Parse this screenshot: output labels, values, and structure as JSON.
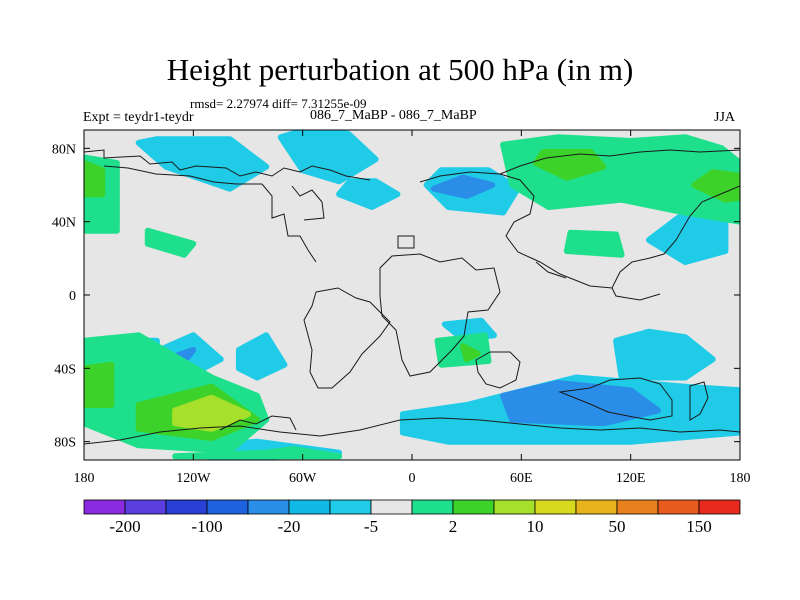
{
  "header": {
    "title": "Height perturbation at 500 hPa (in m)",
    "rmsd_line": "rmsd= 2.27974 diff= 7.31255e-09",
    "experiment": "Expt = teydr1-teydr",
    "difference_label": "086_7_MaBP - 086_7_MaBP",
    "season": "JJA"
  },
  "colors": {
    "background_field": "#e6e6e6",
    "coastline": "#1a1a1a"
  },
  "chart_data": {
    "type": "heatmap",
    "title": "Height perturbation at 500 hPa (in m)",
    "x_axis": {
      "range": [
        -180,
        180
      ],
      "ticks": [
        -180,
        -120,
        -60,
        0,
        60,
        120,
        180
      ],
      "tick_labels": [
        "180",
        "120W",
        "60W",
        "0",
        "60E",
        "120E",
        "180"
      ]
    },
    "y_axis": {
      "range": [
        -90,
        90
      ],
      "ticks": [
        80,
        40,
        0,
        -40,
        -80
      ],
      "tick_labels": [
        "80N",
        "40N",
        "0",
        "40S",
        "80S"
      ]
    },
    "colorbar": {
      "labels": [
        "-200",
        "-100",
        "-20",
        "-5",
        "2",
        "10",
        "50",
        "150"
      ],
      "colors": [
        "#8a2be2",
        "#5a3ee0",
        "#2a3fd6",
        "#1e62e0",
        "#2a8ee8",
        "#11b9e6",
        "#1fcbe6",
        "#e6e6e6",
        "#1ee08c",
        "#3cd22a",
        "#a6e02a",
        "#d6d91e",
        "#e8b41e",
        "#e8801e",
        "#e85a1e",
        "#e82a1e"
      ]
    },
    "features": [
      {
        "level": "-5",
        "color": "#1fcbe6",
        "lon": [
          -150,
          -135,
          -100,
          -80,
          -100,
          -140
        ],
        "lat": [
          83,
          70,
          58,
          70,
          85,
          85
        ]
      },
      {
        "level": "-5",
        "color": "#1fcbe6",
        "lon": [
          -72,
          -60,
          -40,
          -20,
          -35,
          -62
        ],
        "lat": [
          86,
          68,
          62,
          74,
          88,
          89
        ]
      },
      {
        "level": "-5",
        "color": "#1fcbe6",
        "lon": [
          -40,
          -22,
          -8,
          -20,
          -34
        ],
        "lat": [
          55,
          48,
          55,
          62,
          62
        ]
      },
      {
        "level": "-5",
        "color": "#1fcbe6",
        "lon": [
          8,
          20,
          50,
          58,
          42,
          16
        ],
        "lat": [
          60,
          48,
          45,
          58,
          68,
          68
        ]
      },
      {
        "level": "-5",
        "color": "#1fcbe6",
        "lon": [
          130,
          150,
          172,
          172,
          150
        ],
        "lat": [
          30,
          18,
          24,
          42,
          45
        ]
      },
      {
        "level": "-5",
        "color": "#1fcbe6",
        "lon": [
          -168,
          -140,
          -140,
          -168
        ],
        "lat": [
          -25,
          -25,
          -33,
          -33
        ]
      },
      {
        "level": "-5",
        "color": "#1fcbe6",
        "lon": [
          -150,
          -120,
          -105,
          -130,
          -150
        ],
        "lat": [
          -35,
          -22,
          -35,
          -48,
          -45
        ]
      },
      {
        "level": "-5",
        "color": "#1fcbe6",
        "lon": [
          -95,
          -80,
          -70,
          -85,
          -95
        ],
        "lat": [
          -30,
          -22,
          -38,
          -45,
          -40
        ]
      },
      {
        "level": "-5",
        "color": "#1fcbe6",
        "lon": [
          18,
          38,
          45,
          28
        ],
        "lat": [
          -16,
          -14,
          -22,
          -24
        ]
      },
      {
        "level": "-5",
        "color": "#1fcbe6",
        "lon": [
          112,
          130,
          150,
          165,
          150,
          115
        ],
        "lat": [
          -25,
          -20,
          -23,
          -35,
          -45,
          -45
        ]
      },
      {
        "level": "-5",
        "color": "#1fcbe6",
        "lon": [
          -5,
          30,
          90,
          150,
          180,
          180,
          120,
          60,
          20,
          -5
        ],
        "lat": [
          -65,
          -60,
          -45,
          -50,
          -52,
          -75,
          -80,
          -80,
          -80,
          -75
        ]
      },
      {
        "level": "-5",
        "color": "#1fcbe6",
        "lon": [
          -110,
          -85,
          -40,
          -110
        ],
        "lat": [
          -82,
          -80,
          -86,
          -90
        ]
      },
      {
        "level": "-20",
        "color": "#2a8ee8",
        "lon": [
          12,
          30,
          44,
          28
        ],
        "lat": [
          58,
          54,
          60,
          64
        ]
      },
      {
        "level": "-20",
        "color": "#2a8ee8",
        "lon": [
          -135,
          -120,
          -128
        ],
        "lat": [
          -35,
          -30,
          -40
        ]
      },
      {
        "level": "-20",
        "color": "#2a8ee8",
        "lon": [
          50,
          80,
          120,
          135,
          105,
          55
        ],
        "lat": [
          -55,
          -48,
          -52,
          -63,
          -70,
          -68
        ]
      },
      {
        "level": "2",
        "color": "#1ee08c",
        "lon": [
          -180,
          -162,
          -162,
          -180
        ],
        "lat": [
          75,
          72,
          35,
          35
        ]
      },
      {
        "level": "2",
        "color": "#1ee08c",
        "lon": [
          -145,
          -125,
          -120,
          -145
        ],
        "lat": [
          28,
          22,
          28,
          35
        ]
      },
      {
        "level": "2",
        "color": "#1ee08c",
        "lon": [
          50,
          80,
          120,
          150,
          170,
          180,
          180,
          150,
          115,
          75,
          55
        ],
        "lat": [
          82,
          86,
          84,
          86,
          80,
          72,
          40,
          45,
          52,
          48,
          60
        ]
      },
      {
        "level": "2",
        "color": "#1ee08c",
        "lon": [
          -180,
          -150,
          -110,
          -85,
          -80,
          -100,
          -150,
          -180
        ],
        "lat": [
          -25,
          -22,
          -45,
          -55,
          -68,
          -85,
          -82,
          -70
        ]
      },
      {
        "level": "2",
        "color": "#1ee08c",
        "lon": [
          14,
          40,
          42,
          16
        ],
        "lat": [
          -25,
          -22,
          -36,
          -38
        ]
      },
      {
        "level": "2",
        "color": "#1ee08c",
        "lon": [
          -130,
          -80,
          -65,
          -40
        ],
        "lat": [
          -88,
          -86,
          -84,
          -88
        ]
      },
      {
        "level": "2",
        "color": "#1ee08c",
        "lon": [
          85,
          115,
          112,
          87
        ],
        "lat": [
          24,
          22,
          33,
          34
        ]
      },
      {
        "level": "10",
        "color": "#3cd22a",
        "lon": [
          68,
          85,
          105,
          98,
          72
        ],
        "lat": [
          72,
          64,
          70,
          78,
          78
        ]
      },
      {
        "level": "10",
        "color": "#3cd22a",
        "lon": [
          155,
          172,
          180,
          180,
          165
        ],
        "lat": [
          60,
          52,
          53,
          65,
          67
        ]
      },
      {
        "level": "10",
        "color": "#3cd22a",
        "lon": [
          -180,
          -170,
          -170,
          -180
        ],
        "lat": [
          72,
          68,
          55,
          55
        ]
      },
      {
        "level": "10",
        "color": "#3cd22a",
        "lon": [
          -150,
          -110,
          -85,
          -110,
          -150
        ],
        "lat": [
          -60,
          -50,
          -68,
          -78,
          -73
        ]
      },
      {
        "level": "10",
        "color": "#3cd22a",
        "lon": [
          -180,
          -165,
          -165,
          -180
        ],
        "lat": [
          -40,
          -38,
          -60,
          -60
        ]
      },
      {
        "level": "10",
        "color": "#3cd22a",
        "lon": [
          28,
          36,
          30
        ],
        "lat": [
          -28,
          -32,
          -35
        ]
      },
      {
        "level": "50",
        "color": "#a6e02a",
        "lon": [
          -130,
          -110,
          -90,
          -110,
          -130
        ],
        "lat": [
          -63,
          -56,
          -65,
          -73,
          -70
        ]
      }
    ]
  }
}
